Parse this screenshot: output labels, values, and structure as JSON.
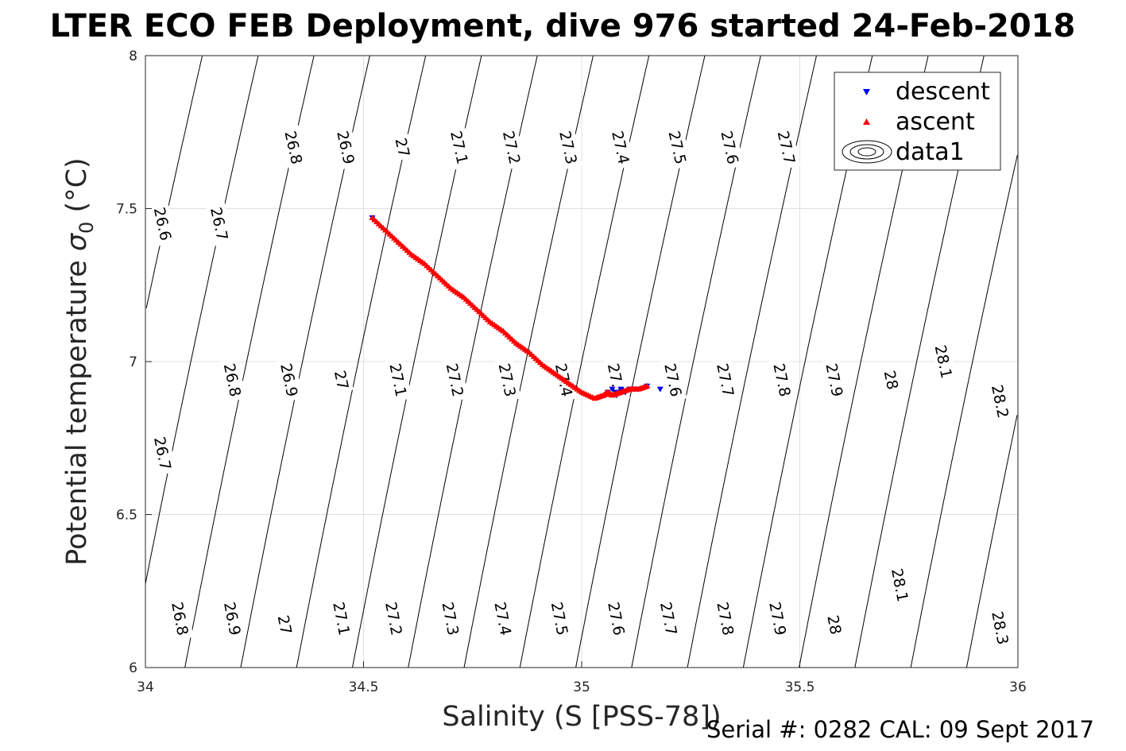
{
  "chart_data": {
    "type": "scatter",
    "title": "LTER ECO FEB Deployment, dive 976 started 24-Feb-2018",
    "xlabel": "Salinity (S [PSS-78])",
    "ylabel_main": "Potential temperature ",
    "ylabel_sym": "σ",
    "ylabel_sub": "0",
    "ylabel_unit": " (°C)",
    "xlim": [
      34,
      36
    ],
    "ylim": [
      6,
      8
    ],
    "xticks": [
      "34",
      "34.5",
      "35",
      "35.5",
      "36"
    ],
    "yticks": [
      "6",
      "6.5",
      "7",
      "7.5",
      "8"
    ],
    "grid": true,
    "legend_position": "top-right",
    "legend": [
      "descent",
      "ascent",
      "data1"
    ],
    "colors": {
      "descent": "#0000ff",
      "ascent": "#ff0000",
      "contour": "#000000",
      "grid": "#e0e0e0"
    },
    "density_contours": [
      26.6,
      26.7,
      26.8,
      26.9,
      27.0,
      27.1,
      27.2,
      27.3,
      27.4,
      27.5,
      27.6,
      27.7,
      27.8,
      27.9,
      28.0,
      28.1,
      28.2,
      28.3
    ],
    "contour_labels": [
      {
        "text": "26.6",
        "s": 34.04,
        "t": 7.45
      },
      {
        "text": "26.7",
        "s": 34.17,
        "t": 7.45
      },
      {
        "text": "26.8",
        "s": 34.34,
        "t": 7.7
      },
      {
        "text": "26.9",
        "s": 34.46,
        "t": 7.7
      },
      {
        "text": "27",
        "s": 34.59,
        "t": 7.7
      },
      {
        "text": "27.1",
        "s": 34.72,
        "t": 7.7
      },
      {
        "text": "27.2",
        "s": 34.84,
        "t": 7.7
      },
      {
        "text": "27.3",
        "s": 34.97,
        "t": 7.7
      },
      {
        "text": "27.4",
        "s": 35.09,
        "t": 7.7
      },
      {
        "text": "27.5",
        "s": 35.22,
        "t": 7.7
      },
      {
        "text": "27.6",
        "s": 35.34,
        "t": 7.7
      },
      {
        "text": "27.7",
        "s": 35.47,
        "t": 7.7
      },
      {
        "text": "26.7",
        "s": 34.04,
        "t": 6.7
      },
      {
        "text": "26.8",
        "s": 34.2,
        "t": 6.94
      },
      {
        "text": "26.9",
        "s": 34.33,
        "t": 6.94
      },
      {
        "text": "27",
        "s": 34.45,
        "t": 6.94
      },
      {
        "text": "27.1",
        "s": 34.58,
        "t": 6.94
      },
      {
        "text": "27.2",
        "s": 34.71,
        "t": 6.94
      },
      {
        "text": "27.3",
        "s": 34.83,
        "t": 6.94
      },
      {
        "text": "27.4",
        "s": 34.96,
        "t": 6.94
      },
      {
        "text": "27.5",
        "s": 35.08,
        "t": 6.94
      },
      {
        "text": "27.6",
        "s": 35.21,
        "t": 6.94
      },
      {
        "text": "27.7",
        "s": 35.33,
        "t": 6.94
      },
      {
        "text": "27.8",
        "s": 35.46,
        "t": 6.94
      },
      {
        "text": "27.9",
        "s": 35.58,
        "t": 6.94
      },
      {
        "text": "28",
        "s": 35.71,
        "t": 6.94
      },
      {
        "text": "28.1",
        "s": 35.83,
        "t": 7.0
      },
      {
        "text": "28.2",
        "s": 35.96,
        "t": 6.87
      },
      {
        "text": "26.8",
        "s": 34.08,
        "t": 6.16
      },
      {
        "text": "26.9",
        "s": 34.2,
        "t": 6.16
      },
      {
        "text": "27",
        "s": 34.32,
        "t": 6.14
      },
      {
        "text": "27.1",
        "s": 34.45,
        "t": 6.16
      },
      {
        "text": "27.2",
        "s": 34.57,
        "t": 6.16
      },
      {
        "text": "27.3",
        "s": 34.7,
        "t": 6.16
      },
      {
        "text": "27.4",
        "s": 34.82,
        "t": 6.16
      },
      {
        "text": "27.5",
        "s": 34.95,
        "t": 6.16
      },
      {
        "text": "27.6",
        "s": 35.08,
        "t": 6.16
      },
      {
        "text": "27.7",
        "s": 35.2,
        "t": 6.16
      },
      {
        "text": "27.8",
        "s": 35.33,
        "t": 6.16
      },
      {
        "text": "27.9",
        "s": 35.45,
        "t": 6.16
      },
      {
        "text": "28",
        "s": 35.58,
        "t": 6.14
      },
      {
        "text": "28.1",
        "s": 35.73,
        "t": 6.27
      },
      {
        "text": "28.3",
        "s": 35.96,
        "t": 6.13
      }
    ],
    "series": [
      {
        "name": "descent",
        "marker": "triangle-down",
        "x": [
          34.52,
          35.06,
          35.07,
          35.08,
          35.09,
          35.1,
          35.11,
          35.12,
          35.13,
          35.15,
          35.18,
          35.08,
          35.1
        ],
        "y": [
          7.47,
          6.9,
          6.91,
          6.9,
          6.91,
          6.9,
          6.91,
          6.91,
          6.91,
          6.92,
          6.91,
          6.89,
          6.9
        ]
      },
      {
        "name": "ascent",
        "marker": "triangle-up",
        "x": [
          34.52,
          34.55,
          34.58,
          34.61,
          34.64,
          34.67,
          34.7,
          34.73,
          34.76,
          34.79,
          34.82,
          34.85,
          34.88,
          34.91,
          34.94,
          34.97,
          35.0,
          35.03,
          35.05,
          35.06,
          35.07,
          35.09,
          35.11,
          35.13,
          35.15
        ],
        "y": [
          7.47,
          7.43,
          7.39,
          7.35,
          7.32,
          7.28,
          7.24,
          7.21,
          7.17,
          7.13,
          7.1,
          7.06,
          7.03,
          6.99,
          6.96,
          6.93,
          6.9,
          6.88,
          6.89,
          6.9,
          6.89,
          6.9,
          6.91,
          6.91,
          6.92
        ]
      }
    ],
    "footer": "Serial #: 0282  CAL: 09 Sept 2017"
  }
}
